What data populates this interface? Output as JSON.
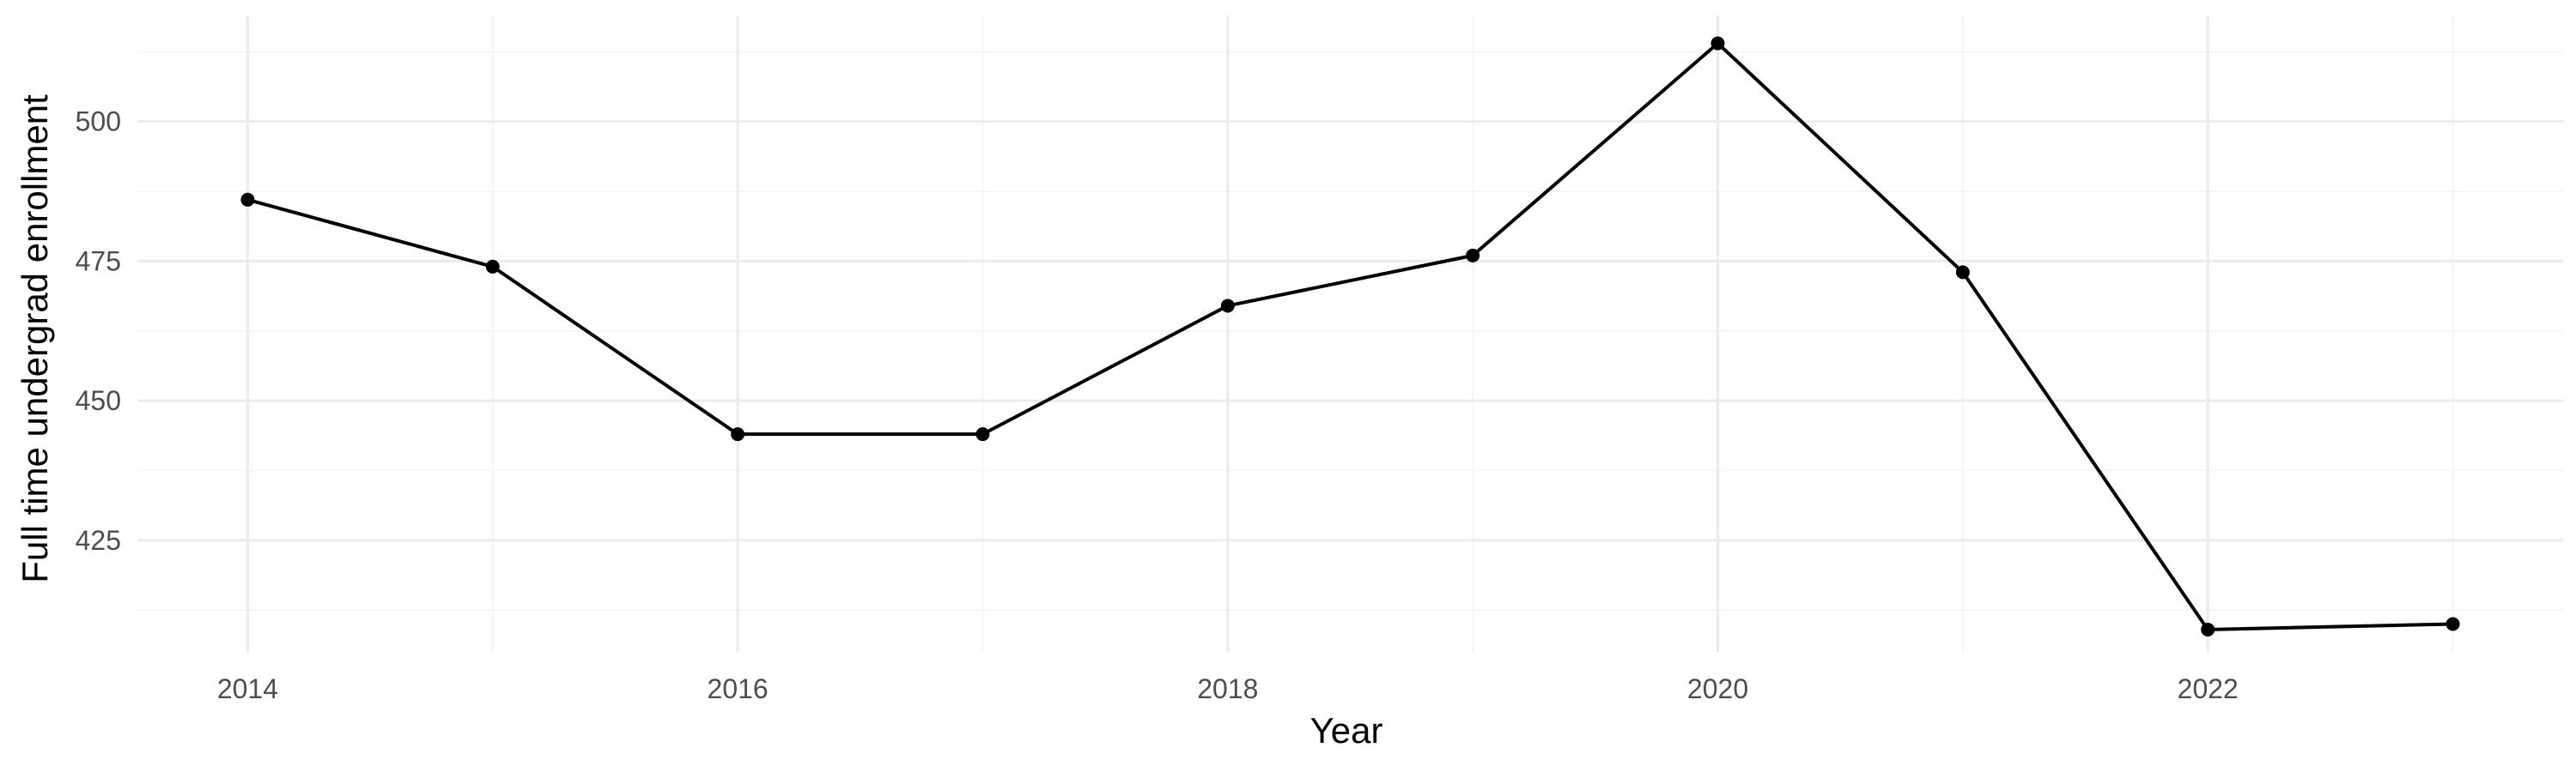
{
  "chart_data": {
    "type": "line",
    "title": "",
    "xlabel": "Year",
    "ylabel": "Full time undergrad enrollment",
    "x": [
      2014,
      2015,
      2016,
      2017,
      2018,
      2019,
      2020,
      2021,
      2022,
      2023
    ],
    "values": [
      486,
      474,
      444,
      444,
      467,
      476,
      514,
      473,
      409,
      410
    ],
    "xlim": [
      2013.55,
      2023.45
    ],
    "ylim": [
      405,
      519
    ],
    "x_ticks": [
      2014,
      2016,
      2018,
      2020,
      2022
    ],
    "x_tick_labels": [
      "2014",
      "2016",
      "2018",
      "2020",
      "2022"
    ],
    "y_ticks": [
      425,
      450,
      475,
      500
    ],
    "y_tick_labels": [
      "425",
      "450",
      "475",
      "500"
    ],
    "grid": true,
    "legend": "none",
    "line_color": "#000000",
    "grid_color": "#ebebeb"
  }
}
